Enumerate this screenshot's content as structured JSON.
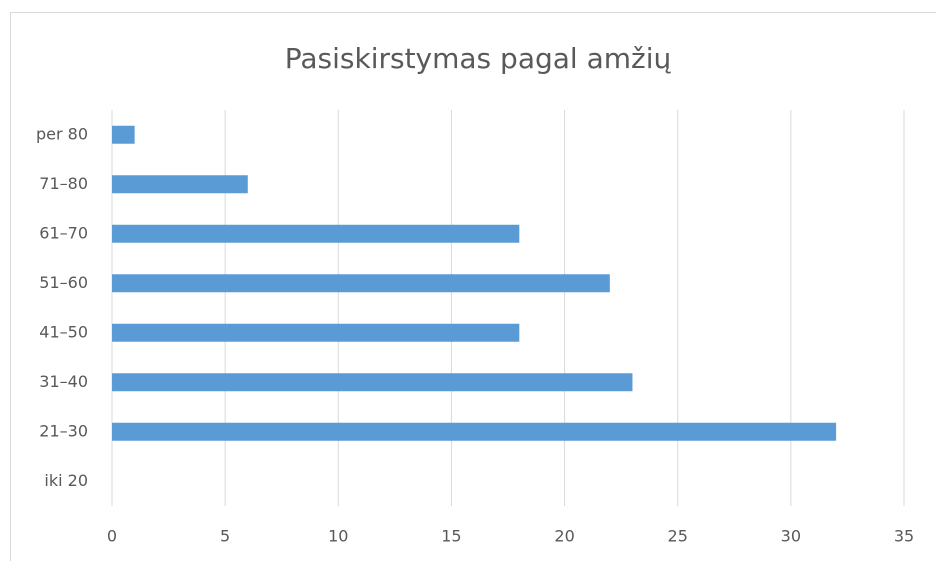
{
  "chart_data": {
    "type": "bar",
    "orientation": "horizontal",
    "title": "Pasiskirstymas pagal amžių",
    "categories": [
      "iki 20",
      "21–30",
      "31–40",
      "41–50",
      "51–60",
      "61–70",
      "71–80",
      "per 80"
    ],
    "values": [
      0,
      32,
      23,
      18,
      22,
      18,
      6,
      1
    ],
    "color": "#5b9bd5",
    "xlim": [
      0,
      35
    ],
    "xticks": [
      0,
      5,
      10,
      15,
      20,
      25,
      30,
      35
    ],
    "grid": true
  }
}
